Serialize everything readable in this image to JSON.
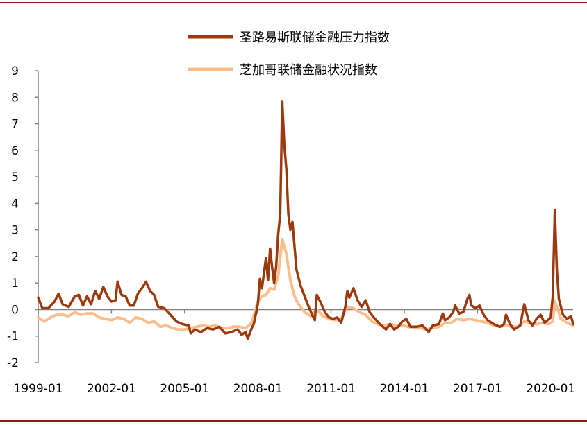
{
  "chart_data": {
    "type": "line",
    "title": "",
    "xlabel": "",
    "ylabel": "",
    "ylim": [
      -2,
      9
    ],
    "xlim": [
      "1999-01",
      "2020-12"
    ],
    "yticks": [
      "9",
      "8",
      "7",
      "6",
      "5",
      "4",
      "3",
      "2",
      "1",
      "0",
      "-1",
      "-2"
    ],
    "xticks": [
      "1999-01",
      "2002-01",
      "2005-01",
      "2008-01",
      "2011-01",
      "2014-01",
      "2017-01",
      "2020-01"
    ],
    "legend_position": "top-right",
    "grid": false,
    "series": [
      {
        "name": "圣路易斯联储金融压力指数",
        "color": "#9c3a0e",
        "points": [
          [
            "1999-01",
            0.45
          ],
          [
            "1999-03",
            0.05
          ],
          [
            "1999-06",
            0.05
          ],
          [
            "1999-09",
            0.3
          ],
          [
            "1999-11",
            0.6
          ],
          [
            "2000-01",
            0.2
          ],
          [
            "2000-04",
            0.1
          ],
          [
            "2000-07",
            0.5
          ],
          [
            "2000-09",
            0.55
          ],
          [
            "2000-11",
            0.15
          ],
          [
            "2001-01",
            0.5
          ],
          [
            "2001-03",
            0.2
          ],
          [
            "2001-05",
            0.7
          ],
          [
            "2001-07",
            0.4
          ],
          [
            "2001-09",
            0.85
          ],
          [
            "2001-11",
            0.5
          ],
          [
            "2002-01",
            0.3
          ],
          [
            "2002-03",
            0.35
          ],
          [
            "2002-04",
            1.05
          ],
          [
            "2002-06",
            0.55
          ],
          [
            "2002-08",
            0.5
          ],
          [
            "2002-10",
            0.15
          ],
          [
            "2002-12",
            0.15
          ],
          [
            "2003-02",
            0.6
          ],
          [
            "2003-04",
            0.8
          ],
          [
            "2003-06",
            1.05
          ],
          [
            "2003-08",
            0.7
          ],
          [
            "2003-10",
            0.55
          ],
          [
            "2003-12",
            0.1
          ],
          [
            "2004-03",
            0.05
          ],
          [
            "2004-06",
            -0.2
          ],
          [
            "2004-09",
            -0.45
          ],
          [
            "2004-12",
            -0.55
          ],
          [
            "2005-03",
            -0.6
          ],
          [
            "2005-04",
            -0.9
          ],
          [
            "2005-06",
            -0.75
          ],
          [
            "2005-09",
            -0.85
          ],
          [
            "2005-12",
            -0.7
          ],
          [
            "2006-03",
            -0.75
          ],
          [
            "2006-06",
            -0.65
          ],
          [
            "2006-09",
            -0.9
          ],
          [
            "2006-12",
            -0.85
          ],
          [
            "2007-03",
            -0.75
          ],
          [
            "2007-05",
            -0.95
          ],
          [
            "2007-07",
            -0.85
          ],
          [
            "2007-08",
            -1.1
          ],
          [
            "2007-10",
            -0.7
          ],
          [
            "2007-11",
            -0.55
          ],
          [
            "2008-01",
            0.2
          ],
          [
            "2008-02",
            1.15
          ],
          [
            "2008-03",
            0.8
          ],
          [
            "2008-05",
            1.95
          ],
          [
            "2008-06",
            1.1
          ],
          [
            "2008-07",
            2.3
          ],
          [
            "2008-08",
            1.6
          ],
          [
            "2008-09",
            1.0
          ],
          [
            "2008-10",
            1.6
          ],
          [
            "2008-11",
            2.85
          ],
          [
            "2008-12",
            3.6
          ],
          [
            "2009-01",
            7.85
          ],
          [
            "2009-02",
            6.2
          ],
          [
            "2009-03",
            5.3
          ],
          [
            "2009-04",
            3.6
          ],
          [
            "2009-05",
            3.0
          ],
          [
            "2009-06",
            3.3
          ],
          [
            "2009-08",
            1.5
          ],
          [
            "2009-10",
            0.9
          ],
          [
            "2009-12",
            0.5
          ],
          [
            "2010-02",
            0.1
          ],
          [
            "2010-04",
            -0.25
          ],
          [
            "2010-05",
            -0.4
          ],
          [
            "2010-06",
            0.55
          ],
          [
            "2010-08",
            0.25
          ],
          [
            "2010-10",
            -0.1
          ],
          [
            "2010-12",
            -0.3
          ],
          [
            "2011-02",
            -0.35
          ],
          [
            "2011-04",
            -0.3
          ],
          [
            "2011-06",
            -0.5
          ],
          [
            "2011-08",
            0.1
          ],
          [
            "2011-09",
            0.7
          ],
          [
            "2011-10",
            0.45
          ],
          [
            "2011-12",
            0.8
          ],
          [
            "2012-02",
            0.35
          ],
          [
            "2012-04",
            0.1
          ],
          [
            "2012-06",
            0.35
          ],
          [
            "2012-08",
            -0.1
          ],
          [
            "2012-10",
            -0.3
          ],
          [
            "2013-01",
            -0.55
          ],
          [
            "2013-04",
            -0.75
          ],
          [
            "2013-06",
            -0.55
          ],
          [
            "2013-08",
            -0.75
          ],
          [
            "2013-10",
            -0.65
          ],
          [
            "2013-12",
            -0.45
          ],
          [
            "2014-02",
            -0.35
          ],
          [
            "2014-04",
            -0.65
          ],
          [
            "2014-07",
            -0.65
          ],
          [
            "2014-10",
            -0.6
          ],
          [
            "2015-01",
            -0.85
          ],
          [
            "2015-03",
            -0.6
          ],
          [
            "2015-06",
            -0.55
          ],
          [
            "2015-08",
            -0.15
          ],
          [
            "2015-09",
            -0.4
          ],
          [
            "2015-11",
            -0.3
          ],
          [
            "2016-01",
            -0.1
          ],
          [
            "2016-02",
            0.15
          ],
          [
            "2016-04",
            -0.15
          ],
          [
            "2016-06",
            -0.1
          ],
          [
            "2016-08",
            0.4
          ],
          [
            "2016-09",
            0.55
          ],
          [
            "2016-10",
            0.15
          ],
          [
            "2016-12",
            0.05
          ],
          [
            "2017-02",
            0.15
          ],
          [
            "2017-04",
            -0.2
          ],
          [
            "2017-06",
            -0.4
          ],
          [
            "2017-09",
            -0.55
          ],
          [
            "2017-12",
            -0.65
          ],
          [
            "2018-02",
            -0.55
          ],
          [
            "2018-03",
            -0.2
          ],
          [
            "2018-05",
            -0.55
          ],
          [
            "2018-07",
            -0.75
          ],
          [
            "2018-10",
            -0.6
          ],
          [
            "2018-12",
            0.2
          ],
          [
            "2019-02",
            -0.4
          ],
          [
            "2019-04",
            -0.6
          ],
          [
            "2019-06",
            -0.35
          ],
          [
            "2019-08",
            -0.2
          ],
          [
            "2019-10",
            -0.5
          ],
          [
            "2020-01",
            -0.3
          ],
          [
            "2020-02",
            0.5
          ],
          [
            "2020-03",
            3.75
          ],
          [
            "2020-04",
            1.5
          ],
          [
            "2020-05",
            0.4
          ],
          [
            "2020-07",
            -0.2
          ],
          [
            "2020-09",
            -0.35
          ],
          [
            "2020-11",
            -0.25
          ],
          [
            "2020-12",
            -0.55
          ]
        ]
      },
      {
        "name": "芝加哥联储金融状况指数",
        "color": "#f9be8c",
        "points": [
          [
            "1999-01",
            -0.3
          ],
          [
            "1999-04",
            -0.45
          ],
          [
            "1999-07",
            -0.3
          ],
          [
            "1999-10",
            -0.2
          ],
          [
            "2000-01",
            -0.2
          ],
          [
            "2000-04",
            -0.25
          ],
          [
            "2000-07",
            -0.1
          ],
          [
            "2000-10",
            -0.2
          ],
          [
            "2001-01",
            -0.15
          ],
          [
            "2001-04",
            -0.15
          ],
          [
            "2001-07",
            -0.3
          ],
          [
            "2001-10",
            -0.35
          ],
          [
            "2002-01",
            -0.4
          ],
          [
            "2002-04",
            -0.3
          ],
          [
            "2002-07",
            -0.35
          ],
          [
            "2002-10",
            -0.5
          ],
          [
            "2003-01",
            -0.3
          ],
          [
            "2003-04",
            -0.35
          ],
          [
            "2003-07",
            -0.5
          ],
          [
            "2003-10",
            -0.45
          ],
          [
            "2004-01",
            -0.65
          ],
          [
            "2004-04",
            -0.6
          ],
          [
            "2004-07",
            -0.7
          ],
          [
            "2004-10",
            -0.75
          ],
          [
            "2005-01",
            -0.75
          ],
          [
            "2005-04",
            -0.7
          ],
          [
            "2005-07",
            -0.65
          ],
          [
            "2005-10",
            -0.6
          ],
          [
            "2006-01",
            -0.65
          ],
          [
            "2006-04",
            -0.6
          ],
          [
            "2006-07",
            -0.7
          ],
          [
            "2006-10",
            -0.7
          ],
          [
            "2007-01",
            -0.65
          ],
          [
            "2007-04",
            -0.65
          ],
          [
            "2007-07",
            -0.7
          ],
          [
            "2007-10",
            -0.5
          ],
          [
            "2008-01",
            0.3
          ],
          [
            "2008-03",
            0.5
          ],
          [
            "2008-05",
            0.55
          ],
          [
            "2008-07",
            0.8
          ],
          [
            "2008-09",
            0.75
          ],
          [
            "2008-11",
            1.3
          ],
          [
            "2009-01",
            2.65
          ],
          [
            "2009-03",
            2.1
          ],
          [
            "2009-05",
            1.1
          ],
          [
            "2009-07",
            0.5
          ],
          [
            "2009-09",
            0.2
          ],
          [
            "2009-12",
            -0.1
          ],
          [
            "2010-03",
            -0.25
          ],
          [
            "2010-06",
            0.0
          ],
          [
            "2010-09",
            -0.25
          ],
          [
            "2010-12",
            -0.35
          ],
          [
            "2011-03",
            -0.4
          ],
          [
            "2011-06",
            -0.35
          ],
          [
            "2011-09",
            0.1
          ],
          [
            "2011-12",
            0.05
          ],
          [
            "2012-03",
            -0.1
          ],
          [
            "2012-06",
            -0.2
          ],
          [
            "2012-09",
            -0.45
          ],
          [
            "2012-12",
            -0.55
          ],
          [
            "2013-03",
            -0.6
          ],
          [
            "2013-06",
            -0.55
          ],
          [
            "2013-09",
            -0.6
          ],
          [
            "2013-12",
            -0.6
          ],
          [
            "2014-03",
            -0.65
          ],
          [
            "2014-06",
            -0.7
          ],
          [
            "2014-09",
            -0.7
          ],
          [
            "2014-12",
            -0.75
          ],
          [
            "2015-03",
            -0.7
          ],
          [
            "2015-06",
            -0.65
          ],
          [
            "2015-09",
            -0.5
          ],
          [
            "2015-12",
            -0.5
          ],
          [
            "2016-03",
            -0.35
          ],
          [
            "2016-06",
            -0.4
          ],
          [
            "2016-09",
            -0.35
          ],
          [
            "2016-12",
            -0.4
          ],
          [
            "2017-03",
            -0.45
          ],
          [
            "2017-06",
            -0.5
          ],
          [
            "2017-09",
            -0.6
          ],
          [
            "2017-12",
            -0.65
          ],
          [
            "2018-03",
            -0.6
          ],
          [
            "2018-06",
            -0.65
          ],
          [
            "2018-09",
            -0.65
          ],
          [
            "2018-12",
            -0.45
          ],
          [
            "2019-03",
            -0.5
          ],
          [
            "2019-06",
            -0.55
          ],
          [
            "2019-09",
            -0.5
          ],
          [
            "2019-12",
            -0.55
          ],
          [
            "2020-02",
            -0.45
          ],
          [
            "2020-03",
            0.3
          ],
          [
            "2020-04",
            0.1
          ],
          [
            "2020-06",
            -0.35
          ],
          [
            "2020-09",
            -0.5
          ],
          [
            "2020-12",
            -0.6
          ]
        ]
      }
    ]
  }
}
